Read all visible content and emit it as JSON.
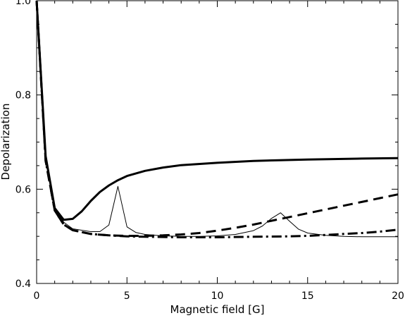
{
  "chart_data": {
    "type": "line",
    "xlabel": "Magnetic field [G]",
    "ylabel": "Depolarization",
    "xlim": [
      0,
      20
    ],
    "ylim": [
      0.4,
      1.0
    ],
    "x_ticks": [
      "0",
      "5",
      "10",
      "15",
      "20"
    ],
    "y_ticks": [
      "0.4",
      "0.6",
      "0.8",
      "1.0"
    ],
    "grid": false,
    "legend": "none",
    "series": [
      {
        "style": "solid-thick",
        "x": [
          0,
          0.5,
          1,
          1.5,
          2,
          2.5,
          3,
          3.5,
          4,
          4.5,
          5,
          6,
          7,
          8,
          10,
          12,
          15,
          18,
          20
        ],
        "y": [
          1.0,
          0.67,
          0.56,
          0.535,
          0.537,
          0.553,
          0.575,
          0.594,
          0.608,
          0.619,
          0.628,
          0.639,
          0.646,
          0.651,
          0.656,
          0.66,
          0.663,
          0.665,
          0.666
        ]
      },
      {
        "style": "dashed-thick",
        "x": [
          0,
          0.5,
          1,
          1.5,
          2,
          3,
          4,
          5,
          6,
          7,
          8,
          9,
          10,
          11,
          12,
          13,
          14,
          15,
          16,
          17,
          18,
          19,
          20
        ],
        "y": [
          1.0,
          0.66,
          0.555,
          0.525,
          0.513,
          0.505,
          0.502,
          0.501,
          0.501,
          0.502,
          0.504,
          0.507,
          0.512,
          0.518,
          0.525,
          0.533,
          0.541,
          0.549,
          0.557,
          0.565,
          0.573,
          0.581,
          0.589
        ]
      },
      {
        "style": "dashdot-thick",
        "x": [
          0,
          0.5,
          1,
          1.5,
          2,
          3,
          4,
          5,
          6,
          8,
          10,
          12,
          14,
          15,
          16,
          17,
          18,
          19,
          20
        ],
        "y": [
          1.0,
          0.66,
          0.555,
          0.525,
          0.513,
          0.505,
          0.502,
          0.5,
          0.499,
          0.498,
          0.498,
          0.499,
          0.5,
          0.501,
          0.503,
          0.505,
          0.507,
          0.51,
          0.514
        ]
      },
      {
        "style": "solid-thin",
        "x": [
          0,
          0.5,
          1,
          1.5,
          2,
          3,
          3.5,
          4,
          4.5,
          5,
          5.5,
          6,
          7,
          8,
          9,
          10,
          11,
          12,
          12.5,
          13,
          13.5,
          14,
          14.5,
          15,
          16,
          17,
          18,
          20
        ],
        "y": [
          1.0,
          0.66,
          0.56,
          0.53,
          0.516,
          0.51,
          0.51,
          0.524,
          0.606,
          0.52,
          0.508,
          0.504,
          0.501,
          0.5,
          0.5,
          0.501,
          0.504,
          0.512,
          0.522,
          0.538,
          0.55,
          0.532,
          0.515,
          0.507,
          0.502,
          0.5,
          0.499,
          0.499
        ]
      }
    ]
  }
}
